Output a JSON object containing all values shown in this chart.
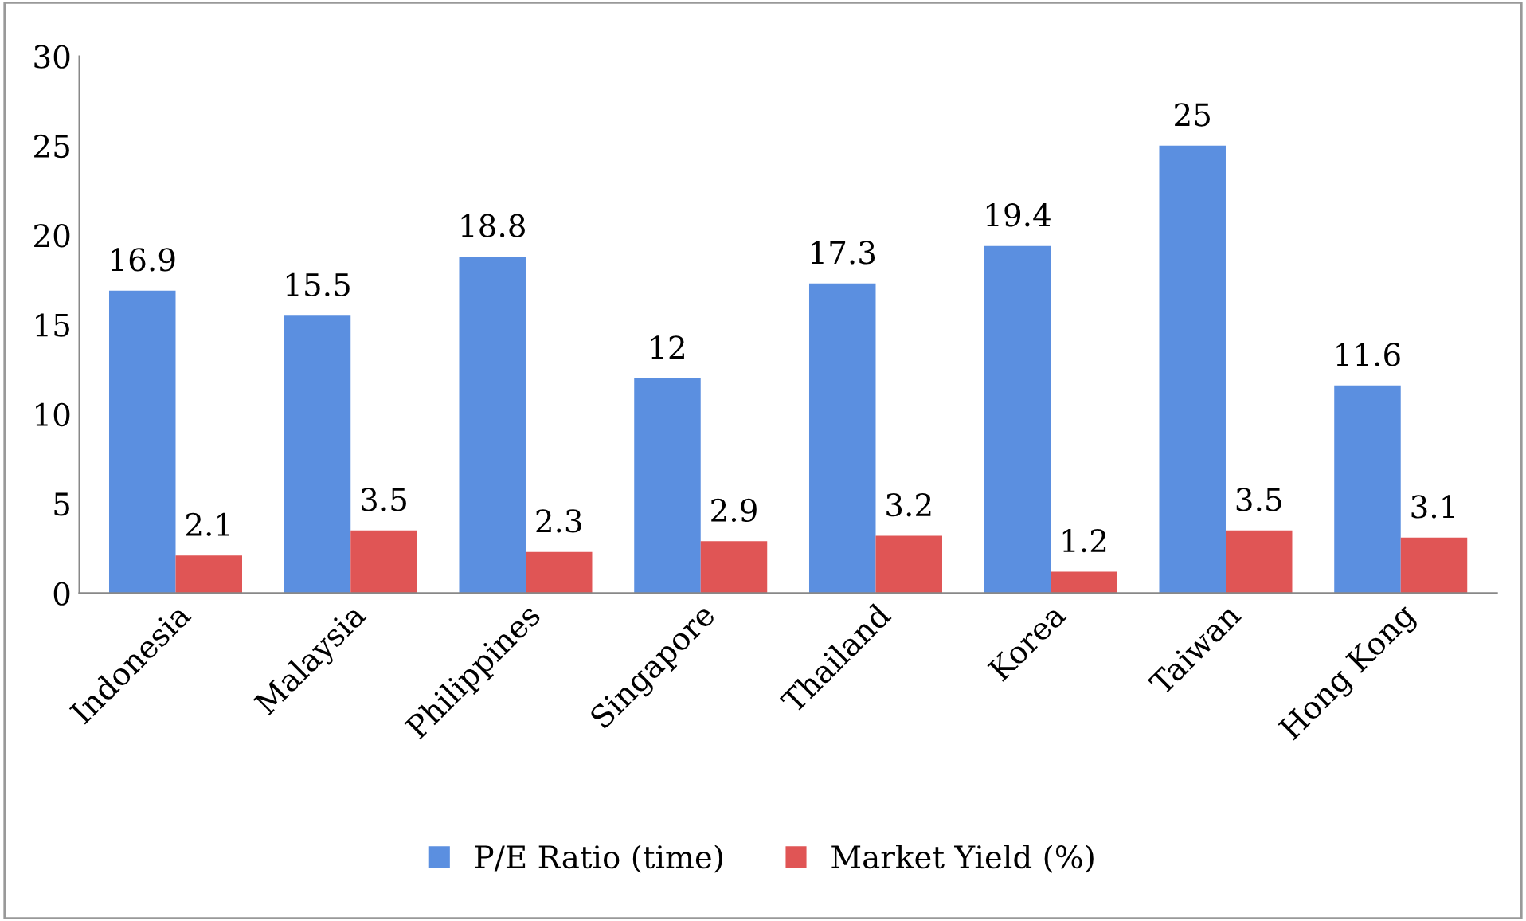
{
  "chart_data": {
    "type": "bar",
    "categories": [
      "Indonesia",
      "Malaysia",
      "Philippines",
      "Singapore",
      "Thailand",
      "Korea",
      "Taiwan",
      "Hong Kong"
    ],
    "series": [
      {
        "name": "P/E Ratio (time)",
        "color": "#5b8fe0",
        "values": [
          16.9,
          15.5,
          18.8,
          12,
          17.3,
          19.4,
          25,
          11.6
        ]
      },
      {
        "name": "Market Yield (%)",
        "color": "#e05555",
        "values": [
          2.1,
          3.5,
          2.3,
          2.9,
          3.2,
          1.2,
          3.5,
          3.1
        ]
      }
    ],
    "ylim": [
      0,
      30
    ],
    "yticks": [
      0,
      5,
      10,
      15,
      20,
      25,
      30
    ],
    "grid": false,
    "legend": "bottom",
    "data_labels": true
  }
}
